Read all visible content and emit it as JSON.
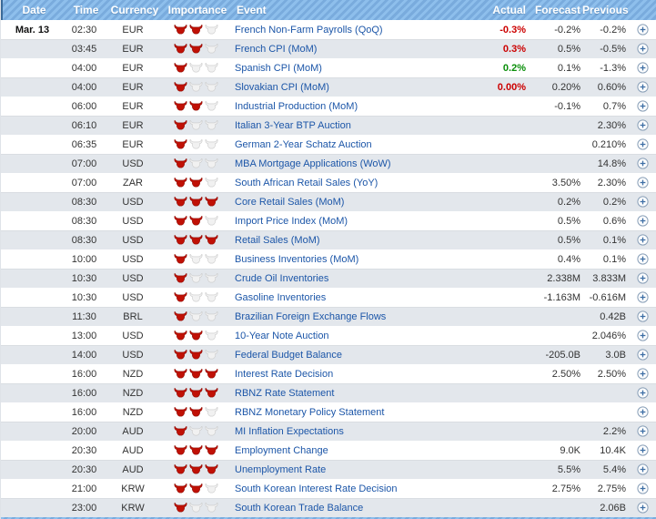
{
  "header": {
    "columns": {
      "date": "Date",
      "time": "Time",
      "currency": "Currency",
      "importance": "Importance",
      "event": "Event",
      "actual": "Actual",
      "forecast": "Forecast",
      "previous": "Previous"
    }
  },
  "icons": {
    "importance": "bull-icon",
    "expand": "plus-circle-icon"
  },
  "colors": {
    "header_stripe_light": "#8ebfec",
    "header_stripe_dark": "#79abdd",
    "row_alt": "#e3e7ec",
    "event_link": "#1c56a8",
    "actual_negative": "#cc0000",
    "actual_positive": "#0a8f0a",
    "bull_red": "#c01005",
    "bull_gray": "#f1f1f1"
  },
  "table": {
    "date_label": "Mar. 13",
    "rows": [
      {
        "date": "Mar. 13",
        "time": "02:30",
        "currency": "EUR",
        "bulls": 2,
        "event": "French Non-Farm Payrolls (QoQ)",
        "actual": "-0.3%",
        "actual_class": "neg",
        "forecast": "-0.2%",
        "previous": "-0.2%"
      },
      {
        "date": "",
        "time": "03:45",
        "currency": "EUR",
        "bulls": 2,
        "event": "French CPI (MoM)",
        "actual": "0.3%",
        "actual_class": "neg",
        "forecast": "0.5%",
        "previous": "-0.5%"
      },
      {
        "date": "",
        "time": "04:00",
        "currency": "EUR",
        "bulls": 1,
        "event": "Spanish CPI (MoM)",
        "actual": "0.2%",
        "actual_class": "pos",
        "forecast": "0.1%",
        "previous": "-1.3%"
      },
      {
        "date": "",
        "time": "04:00",
        "currency": "EUR",
        "bulls": 1,
        "event": "Slovakian CPI (MoM)",
        "actual": "0.00%",
        "actual_class": "neg",
        "forecast": "0.20%",
        "previous": "0.60%"
      },
      {
        "date": "",
        "time": "06:00",
        "currency": "EUR",
        "bulls": 2,
        "event": "Industrial Production (MoM)",
        "actual": "",
        "actual_class": "",
        "forecast": "-0.1%",
        "previous": "0.7%"
      },
      {
        "date": "",
        "time": "06:10",
        "currency": "EUR",
        "bulls": 1,
        "event": "Italian 3-Year BTP Auction",
        "actual": "",
        "actual_class": "",
        "forecast": "",
        "previous": "2.30%"
      },
      {
        "date": "",
        "time": "06:35",
        "currency": "EUR",
        "bulls": 1,
        "event": "German 2-Year Schatz Auction",
        "actual": "",
        "actual_class": "",
        "forecast": "",
        "previous": "0.210%"
      },
      {
        "date": "",
        "time": "07:00",
        "currency": "USD",
        "bulls": 1,
        "event": "MBA Mortgage Applications (WoW)",
        "actual": "",
        "actual_class": "",
        "forecast": "",
        "previous": "14.8%"
      },
      {
        "date": "",
        "time": "07:00",
        "currency": "ZAR",
        "bulls": 2,
        "event": "South African Retail Sales (YoY)",
        "actual": "",
        "actual_class": "",
        "forecast": "3.50%",
        "previous": "2.30%"
      },
      {
        "date": "",
        "time": "08:30",
        "currency": "USD",
        "bulls": 3,
        "event": "Core Retail Sales (MoM)",
        "actual": "",
        "actual_class": "",
        "forecast": "0.2%",
        "previous": "0.2%"
      },
      {
        "date": "",
        "time": "08:30",
        "currency": "USD",
        "bulls": 2,
        "event": "Import Price Index (MoM)",
        "actual": "",
        "actual_class": "",
        "forecast": "0.5%",
        "previous": "0.6%"
      },
      {
        "date": "",
        "time": "08:30",
        "currency": "USD",
        "bulls": 3,
        "event": "Retail Sales (MoM)",
        "actual": "",
        "actual_class": "",
        "forecast": "0.5%",
        "previous": "0.1%"
      },
      {
        "date": "",
        "time": "10:00",
        "currency": "USD",
        "bulls": 1,
        "event": "Business Inventories (MoM)",
        "actual": "",
        "actual_class": "",
        "forecast": "0.4%",
        "previous": "0.1%"
      },
      {
        "date": "",
        "time": "10:30",
        "currency": "USD",
        "bulls": 1,
        "event": "Crude Oil Inventories",
        "actual": "",
        "actual_class": "",
        "forecast": "2.338M",
        "previous": "3.833M"
      },
      {
        "date": "",
        "time": "10:30",
        "currency": "USD",
        "bulls": 1,
        "event": "Gasoline Inventories",
        "actual": "",
        "actual_class": "",
        "forecast": "-1.163M",
        "previous": "-0.616M"
      },
      {
        "date": "",
        "time": "11:30",
        "currency": "BRL",
        "bulls": 1,
        "event": "Brazilian Foreign Exchange Flows",
        "actual": "",
        "actual_class": "",
        "forecast": "",
        "previous": "0.42B"
      },
      {
        "date": "",
        "time": "13:00",
        "currency": "USD",
        "bulls": 2,
        "event": "10-Year Note Auction",
        "actual": "",
        "actual_class": "",
        "forecast": "",
        "previous": "2.046%"
      },
      {
        "date": "",
        "time": "14:00",
        "currency": "USD",
        "bulls": 2,
        "event": "Federal Budget Balance",
        "actual": "",
        "actual_class": "",
        "forecast": "-205.0B",
        "previous": "3.0B"
      },
      {
        "date": "",
        "time": "16:00",
        "currency": "NZD",
        "bulls": 3,
        "event": "Interest Rate Decision",
        "actual": "",
        "actual_class": "",
        "forecast": "2.50%",
        "previous": "2.50%"
      },
      {
        "date": "",
        "time": "16:00",
        "currency": "NZD",
        "bulls": 3,
        "event": "RBNZ Rate Statement",
        "actual": "",
        "actual_class": "",
        "forecast": "",
        "previous": ""
      },
      {
        "date": "",
        "time": "16:00",
        "currency": "NZD",
        "bulls": 2,
        "event": "RBNZ Monetary Policy Statement",
        "actual": "",
        "actual_class": "",
        "forecast": "",
        "previous": ""
      },
      {
        "date": "",
        "time": "20:00",
        "currency": "AUD",
        "bulls": 1,
        "event": "MI Inflation Expectations",
        "actual": "",
        "actual_class": "",
        "forecast": "",
        "previous": "2.2%"
      },
      {
        "date": "",
        "time": "20:30",
        "currency": "AUD",
        "bulls": 3,
        "event": "Employment Change",
        "actual": "",
        "actual_class": "",
        "forecast": "9.0K",
        "previous": "10.4K"
      },
      {
        "date": "",
        "time": "20:30",
        "currency": "AUD",
        "bulls": 3,
        "event": "Unemployment Rate",
        "actual": "",
        "actual_class": "",
        "forecast": "5.5%",
        "previous": "5.4%"
      },
      {
        "date": "",
        "time": "21:00",
        "currency": "KRW",
        "bulls": 2,
        "event": "South Korean Interest Rate Decision",
        "actual": "",
        "actual_class": "",
        "forecast": "2.75%",
        "previous": "2.75%"
      },
      {
        "date": "",
        "time": "23:00",
        "currency": "KRW",
        "bulls": 1,
        "event": "South Korean Trade Balance",
        "actual": "",
        "actual_class": "",
        "forecast": "",
        "previous": "2.06B"
      }
    ]
  }
}
